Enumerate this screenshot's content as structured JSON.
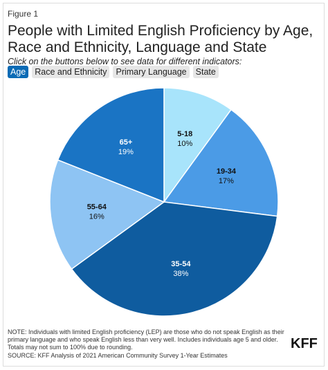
{
  "figure_label": "Figure 1",
  "title": "People with Limited English Proficiency by Age, Race and Ethnicity, Language and State",
  "instruction": "Click on the buttons below to see data for different indicators:",
  "tabs": [
    {
      "label": "Age",
      "active": true
    },
    {
      "label": "Race and Ethnicity",
      "active": false
    },
    {
      "label": "Primary Language",
      "active": false
    },
    {
      "label": "State",
      "active": false
    }
  ],
  "chart_data": {
    "type": "pie",
    "title": "",
    "slices": [
      {
        "label": "5-18",
        "value": 10,
        "value_label": "10%",
        "color": "#a8e4fb",
        "label_color": "#111111"
      },
      {
        "label": "19-34",
        "value": 17,
        "value_label": "17%",
        "color": "#4b9be6",
        "label_color": "#111111"
      },
      {
        "label": "35-54",
        "value": 38,
        "value_label": "38%",
        "color": "#0f5c9f",
        "label_color": "#ffffff"
      },
      {
        "label": "55-64",
        "value": 16,
        "value_label": "16%",
        "color": "#8ec4f3",
        "label_color": "#111111"
      },
      {
        "label": "65+",
        "value": 19,
        "value_label": "19%",
        "color": "#1a74c4",
        "label_color": "#ffffff"
      }
    ]
  },
  "note": "NOTE: Individuals with limited English proficiency (LEP) are those who do not speak English as their primary language and who speak English less than very well. Includes individuals age 5 and older. Totals may not sum to 100% due to rounding.",
  "source": "SOURCE: KFF Analysis of 2021 American Community Survey 1-Year Estimates",
  "logo_text": "KFF"
}
